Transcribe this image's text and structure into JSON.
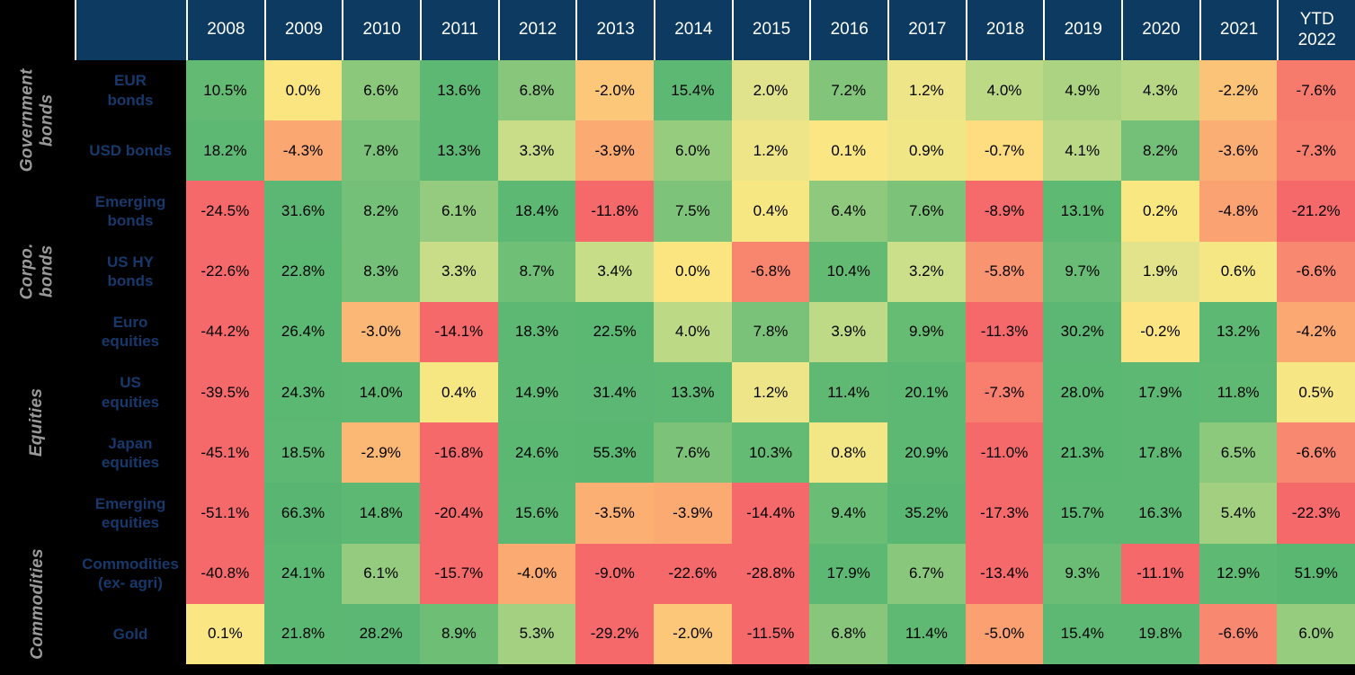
{
  "colors": {
    "page_background": "#000000",
    "header_background": "#0c3a61",
    "header_text": "#ffffff",
    "header_separator": "#ffffff",
    "row_label_text": "#17386b",
    "category_label_text": "#9a9a9a",
    "cell_text": "#000000"
  },
  "chart_data": {
    "type": "heatmap",
    "title": "",
    "value_unit": "%",
    "value_format": "one_decimal_percent",
    "columns": [
      "2008",
      "2009",
      "2010",
      "2011",
      "2012",
      "2013",
      "2014",
      "2015",
      "2016",
      "2017",
      "2018",
      "2019",
      "2020",
      "2021",
      "YTD\n2022"
    ],
    "groups": [
      {
        "label": "Government\nbonds",
        "anchor_rows": [
          0,
          1
        ]
      },
      {
        "label": "Corpo.\nbonds",
        "anchor_rows": [
          3,
          3
        ]
      },
      {
        "label": "Equities",
        "anchor_rows": [
          4,
          7
        ]
      },
      {
        "label": "Commodities",
        "anchor_rows": [
          8,
          9
        ]
      }
    ],
    "rows": [
      {
        "label": "EUR\nbonds",
        "group": "Government bonds",
        "values": [
          10.5,
          0.0,
          6.6,
          13.6,
          6.8,
          -2.0,
          15.4,
          2.0,
          7.2,
          1.2,
          4.0,
          4.9,
          4.3,
          -2.2,
          -7.6
        ]
      },
      {
        "label": "USD bonds",
        "group": "Government bonds",
        "values": [
          18.2,
          -4.3,
          7.8,
          13.3,
          3.3,
          -3.9,
          6.0,
          1.2,
          0.1,
          0.9,
          -0.7,
          4.1,
          8.2,
          -3.6,
          -7.3
        ]
      },
      {
        "label": "Emerging\nbonds",
        "group": "Government bonds",
        "values": [
          -24.5,
          31.6,
          8.2,
          6.1,
          18.4,
          -11.8,
          7.5,
          0.4,
          6.4,
          7.6,
          -8.9,
          13.1,
          0.2,
          -4.8,
          -21.2
        ]
      },
      {
        "label": "US HY\nbonds",
        "group": "Corpo. bonds",
        "values": [
          -22.6,
          22.8,
          8.3,
          3.3,
          8.7,
          3.4,
          0.0,
          -6.8,
          10.4,
          3.2,
          -5.8,
          9.7,
          1.9,
          0.6,
          -6.6
        ]
      },
      {
        "label": "Euro\nequities",
        "group": "Equities",
        "values": [
          -44.2,
          26.4,
          -3.0,
          -14.1,
          18.3,
          22.5,
          4.0,
          7.8,
          3.9,
          9.9,
          -11.3,
          30.2,
          -0.2,
          13.2,
          -4.2
        ]
      },
      {
        "label": "US\nequities",
        "group": "Equities",
        "values": [
          -39.5,
          24.3,
          14.0,
          0.4,
          14.9,
          31.4,
          13.3,
          1.2,
          11.4,
          20.1,
          -7.3,
          28.0,
          17.9,
          11.8,
          0.5
        ]
      },
      {
        "label": "Japan\nequities",
        "group": "Equities",
        "values": [
          -45.1,
          18.5,
          -2.9,
          -16.8,
          24.6,
          55.3,
          7.6,
          10.3,
          0.8,
          20.9,
          -11.0,
          21.3,
          17.8,
          6.5,
          -6.6
        ]
      },
      {
        "label": "Emerging\nequities",
        "group": "Equities",
        "values": [
          -51.1,
          66.3,
          14.8,
          -20.4,
          15.6,
          -3.5,
          -3.9,
          -14.4,
          9.4,
          35.2,
          -17.3,
          15.7,
          16.3,
          5.4,
          -22.3
        ]
      },
      {
        "label": "Commodities\n(ex- agri)",
        "group": "Commodities",
        "values": [
          -40.8,
          24.1,
          6.1,
          -15.7,
          -4.0,
          -9.0,
          -22.6,
          -28.8,
          17.9,
          6.7,
          -13.4,
          9.3,
          -11.1,
          12.9,
          51.9
        ]
      },
      {
        "label": "Gold",
        "group": "Commodities",
        "values": [
          0.1,
          21.8,
          28.2,
          8.9,
          5.3,
          -29.2,
          -2.0,
          -11.5,
          6.8,
          11.4,
          -5.0,
          15.4,
          19.8,
          -6.6,
          6.0
        ]
      }
    ],
    "colorscale_stops": [
      [
        -52.0,
        "#f5696b"
      ],
      [
        -9.0,
        "#f5696b"
      ],
      [
        -7.0,
        "#f8826e"
      ],
      [
        -5.0,
        "#faa071"
      ],
      [
        -3.5,
        "#fbaf73"
      ],
      [
        -2.5,
        "#fbbe76"
      ],
      [
        -1.5,
        "#fccf7b"
      ],
      [
        -0.5,
        "#fde180"
      ],
      [
        0.2,
        "#f9e782"
      ],
      [
        1.0,
        "#f0e686"
      ],
      [
        2.0,
        "#e0e38b"
      ],
      [
        3.0,
        "#cfdf8a"
      ],
      [
        4.0,
        "#bcd986"
      ],
      [
        5.0,
        "#aad282"
      ],
      [
        6.0,
        "#96cc7e"
      ],
      [
        7.0,
        "#84c57b"
      ],
      [
        8.5,
        "#71bf77"
      ],
      [
        10.5,
        "#62ba73"
      ],
      [
        14.0,
        "#5cb873"
      ],
      [
        70.0,
        "#58b672"
      ]
    ],
    "legend_position": "none",
    "grid": false
  }
}
